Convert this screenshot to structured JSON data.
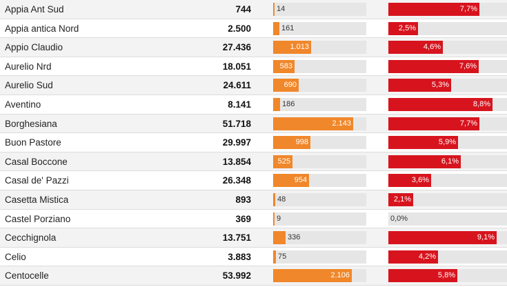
{
  "chart_data": {
    "type": "table",
    "colors": {
      "count_bar": "#f0872a",
      "percent_bar": "#d7141e",
      "track": "#e6e6e6"
    },
    "count_scale_max": 2500,
    "percent_scale_max": 10,
    "rows": [
      {
        "name": "Appia Ant Sud",
        "population": "744",
        "count": 14,
        "count_label": "14",
        "percent": 7.7,
        "percent_label": "7,7%"
      },
      {
        "name": "Appia antica Nord",
        "population": "2.500",
        "count": 161,
        "count_label": "161",
        "percent": 2.5,
        "percent_label": "2,5%"
      },
      {
        "name": "Appio Claudio",
        "population": "27.436",
        "count": 1013,
        "count_label": "1.013",
        "percent": 4.6,
        "percent_label": "4,6%"
      },
      {
        "name": "Aurelio Nrd",
        "population": "18.051",
        "count": 583,
        "count_label": "583",
        "percent": 7.6,
        "percent_label": "7,6%"
      },
      {
        "name": "Aurelio Sud",
        "population": "24.611",
        "count": 690,
        "count_label": "690",
        "percent": 5.3,
        "percent_label": "5,3%"
      },
      {
        "name": "Aventino",
        "population": "8.141",
        "count": 186,
        "count_label": "186",
        "percent": 8.8,
        "percent_label": "8,8%"
      },
      {
        "name": "Borghesiana",
        "population": "51.718",
        "count": 2143,
        "count_label": "2.143",
        "percent": 7.7,
        "percent_label": "7,7%"
      },
      {
        "name": "Buon Pastore",
        "population": "29.997",
        "count": 998,
        "count_label": "998",
        "percent": 5.9,
        "percent_label": "5,9%"
      },
      {
        "name": "Casal Boccone",
        "population": "13.854",
        "count": 525,
        "count_label": "525",
        "percent": 6.1,
        "percent_label": "6,1%"
      },
      {
        "name": "Casal de' Pazzi",
        "population": "26.348",
        "count": 954,
        "count_label": "954",
        "percent": 3.6,
        "percent_label": "3,6%"
      },
      {
        "name": "Casetta Mistica",
        "population": "893",
        "count": 48,
        "count_label": "48",
        "percent": 2.1,
        "percent_label": "2,1%"
      },
      {
        "name": "Castel Porziano",
        "population": "369",
        "count": 9,
        "count_label": "9",
        "percent": 0.0,
        "percent_label": "0,0%"
      },
      {
        "name": "Cecchignola",
        "population": "13.751",
        "count": 336,
        "count_label": "336",
        "percent": 9.1,
        "percent_label": "9,1%"
      },
      {
        "name": "Celio",
        "population": "3.883",
        "count": 75,
        "count_label": "75",
        "percent": 4.2,
        "percent_label": "4,2%"
      },
      {
        "name": "Centocelle",
        "population": "53.992",
        "count": 2106,
        "count_label": "2.106",
        "percent": 5.8,
        "percent_label": "5,8%"
      }
    ]
  }
}
